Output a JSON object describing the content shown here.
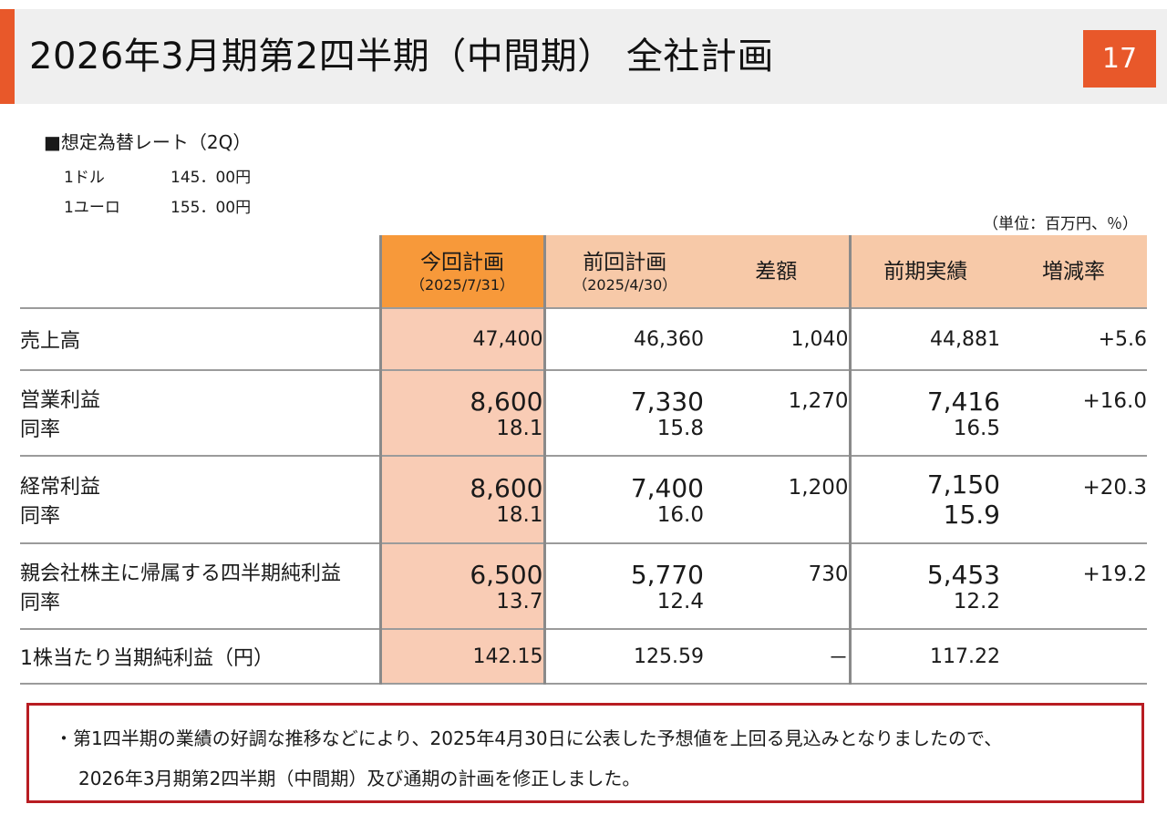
{
  "header": {
    "title": "2026年3月期第2四半期（中間期） 全社計画",
    "page_number": "17"
  },
  "fx": {
    "heading": "■想定為替レート（2Q）",
    "rows": [
      {
        "label": "1ドル",
        "value": "145．00円"
      },
      {
        "label": "1ユーロ",
        "value": "155．00円"
      }
    ]
  },
  "unit_note": "（単位：百万円、％）",
  "table": {
    "columns": [
      {
        "label": "今回計画",
        "sub": "（2025/7/31）"
      },
      {
        "label": "前回計画",
        "sub": "（2025/4/30）"
      },
      {
        "label": "差額",
        "sub": ""
      },
      {
        "label": "前期実績",
        "sub": ""
      },
      {
        "label": "増減率",
        "sub": ""
      }
    ],
    "rows": [
      {
        "label": "売上高",
        "current": "47,400",
        "previous": "46,360",
        "diff": "1,040",
        "prior": "44,881",
        "change": "+5.6"
      },
      {
        "label": "営業利益",
        "current": "8,600",
        "previous": "7,330",
        "diff": "1,270",
        "prior": "7,416",
        "change": "+16.0",
        "rate_label": "同率",
        "rate_current": "18.1",
        "rate_previous": "15.8",
        "rate_prior": "16.5"
      },
      {
        "label": "経常利益",
        "current": "8,600",
        "previous": "7,400",
        "diff": "1,200",
        "prior": "7,150",
        "change": "+20.3",
        "rate_label": "同率",
        "rate_current": "18.1",
        "rate_previous": "16.0",
        "rate_prior": "15.9"
      },
      {
        "label": "親会社株主に帰属する四半期純利益",
        "current": "6,500",
        "previous": "5,770",
        "diff": "730",
        "prior": "5,453",
        "change": "+19.2",
        "rate_label": "同率",
        "rate_current": "13.7",
        "rate_previous": "12.4",
        "rate_prior": "12.2"
      },
      {
        "label": "1株当たり当期純利益（円）",
        "current": "142.15",
        "previous": "125.59",
        "diff": "－",
        "prior": "117.22",
        "change": ""
      }
    ]
  },
  "note": {
    "line1": "・第1四半期の業績の好調な推移などにより、2025年4月30日に公表した予想値を上回る見込みとなりましたので、",
    "line2": "2026年3月期第2四半期（中間期）及び通期の計画を修正しました。"
  },
  "colors": {
    "accent": "#e8582a",
    "header_highlight": "#f7993a",
    "header_band": "#f7c9a8",
    "column_highlight": "#f9ccb5",
    "note_border": "#b81c22"
  }
}
